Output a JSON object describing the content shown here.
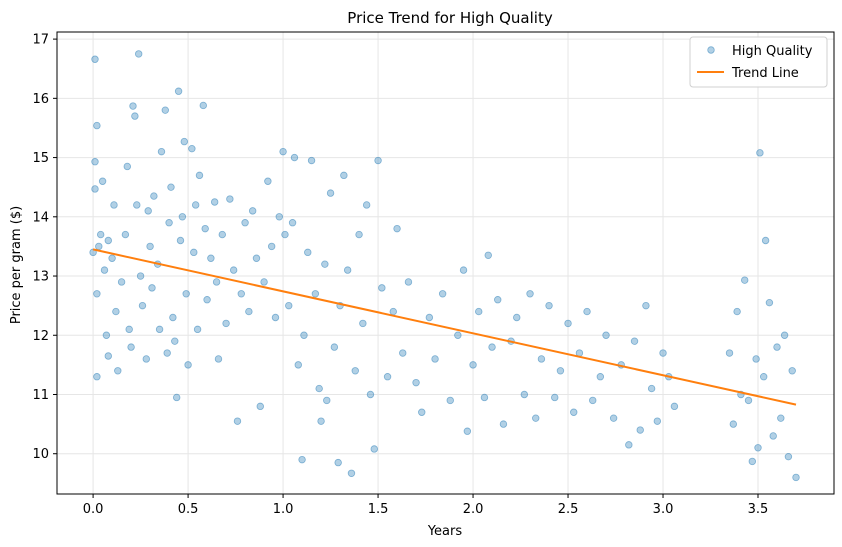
{
  "chart_data": {
    "type": "scatter",
    "title": "Price Trend for High Quality",
    "xlabel": "Years",
    "ylabel": "Price per gram ($)",
    "xlim": [
      -0.19,
      3.9
    ],
    "ylim": [
      9.32,
      17.12
    ],
    "xticks": [
      0.0,
      0.5,
      1.0,
      1.5,
      2.0,
      2.5,
      3.0,
      3.5
    ],
    "xtick_labels": [
      "0.0",
      "0.5",
      "1.0",
      "1.5",
      "2.0",
      "2.5",
      "3.0",
      "3.5"
    ],
    "yticks": [
      10,
      11,
      12,
      13,
      14,
      15,
      16,
      17
    ],
    "ytick_labels": [
      "10",
      "11",
      "12",
      "13",
      "14",
      "15",
      "16",
      "17"
    ],
    "grid": true,
    "legend_position": "top-right",
    "series": [
      {
        "name": "High Quality",
        "kind": "scatter",
        "color": "#1f77b4",
        "alpha": 0.35,
        "points": [
          [
            0.0,
            13.4
          ],
          [
            0.01,
            16.66
          ],
          [
            0.01,
            14.93
          ],
          [
            0.01,
            14.47
          ],
          [
            0.02,
            15.54
          ],
          [
            0.02,
            12.7
          ],
          [
            0.02,
            11.3
          ],
          [
            0.03,
            13.5
          ],
          [
            0.04,
            13.7
          ],
          [
            0.05,
            14.6
          ],
          [
            0.06,
            13.1
          ],
          [
            0.07,
            12.0
          ],
          [
            0.08,
            13.6
          ],
          [
            0.08,
            11.65
          ],
          [
            0.1,
            13.3
          ],
          [
            0.11,
            14.2
          ],
          [
            0.12,
            12.4
          ],
          [
            0.13,
            11.4
          ],
          [
            0.15,
            12.9
          ],
          [
            0.17,
            13.7
          ],
          [
            0.18,
            14.85
          ],
          [
            0.19,
            12.1
          ],
          [
            0.2,
            11.8
          ],
          [
            0.21,
            15.87
          ],
          [
            0.22,
            15.7
          ],
          [
            0.23,
            14.2
          ],
          [
            0.24,
            16.75
          ],
          [
            0.25,
            13.0
          ],
          [
            0.26,
            12.5
          ],
          [
            0.28,
            11.6
          ],
          [
            0.29,
            14.1
          ],
          [
            0.3,
            13.5
          ],
          [
            0.31,
            12.8
          ],
          [
            0.32,
            14.35
          ],
          [
            0.34,
            13.2
          ],
          [
            0.35,
            12.1
          ],
          [
            0.36,
            15.1
          ],
          [
            0.38,
            15.8
          ],
          [
            0.39,
            11.7
          ],
          [
            0.4,
            13.9
          ],
          [
            0.41,
            14.5
          ],
          [
            0.42,
            12.3
          ],
          [
            0.43,
            11.9
          ],
          [
            0.44,
            10.95
          ],
          [
            0.45,
            16.12
          ],
          [
            0.46,
            13.6
          ],
          [
            0.47,
            14.0
          ],
          [
            0.48,
            15.27
          ],
          [
            0.49,
            12.7
          ],
          [
            0.5,
            11.5
          ],
          [
            0.52,
            15.15
          ],
          [
            0.53,
            13.4
          ],
          [
            0.54,
            14.2
          ],
          [
            0.55,
            12.1
          ],
          [
            0.56,
            14.7
          ],
          [
            0.58,
            15.88
          ],
          [
            0.59,
            13.8
          ],
          [
            0.6,
            12.6
          ],
          [
            0.62,
            13.3
          ],
          [
            0.64,
            14.25
          ],
          [
            0.65,
            12.9
          ],
          [
            0.66,
            11.6
          ],
          [
            0.68,
            13.7
          ],
          [
            0.7,
            12.2
          ],
          [
            0.72,
            14.3
          ],
          [
            0.74,
            13.1
          ],
          [
            0.76,
            10.55
          ],
          [
            0.78,
            12.7
          ],
          [
            0.8,
            13.9
          ],
          [
            0.82,
            12.4
          ],
          [
            0.84,
            14.1
          ],
          [
            0.86,
            13.3
          ],
          [
            0.88,
            10.8
          ],
          [
            0.9,
            12.9
          ],
          [
            0.92,
            14.6
          ],
          [
            0.94,
            13.5
          ],
          [
            0.96,
            12.3
          ],
          [
            0.98,
            14.0
          ],
          [
            1.0,
            15.1
          ],
          [
            1.01,
            13.7
          ],
          [
            1.03,
            12.5
          ],
          [
            1.05,
            13.9
          ],
          [
            1.06,
            15.0
          ],
          [
            1.08,
            11.5
          ],
          [
            1.1,
            9.9
          ],
          [
            1.11,
            12.0
          ],
          [
            1.13,
            13.4
          ],
          [
            1.15,
            14.95
          ],
          [
            1.17,
            12.7
          ],
          [
            1.19,
            11.1
          ],
          [
            1.2,
            10.55
          ],
          [
            1.22,
            13.2
          ],
          [
            1.23,
            10.9
          ],
          [
            1.25,
            14.4
          ],
          [
            1.27,
            11.8
          ],
          [
            1.29,
            9.85
          ],
          [
            1.3,
            12.5
          ],
          [
            1.32,
            14.7
          ],
          [
            1.34,
            13.1
          ],
          [
            1.36,
            9.67
          ],
          [
            1.38,
            11.4
          ],
          [
            1.4,
            13.7
          ],
          [
            1.42,
            12.2
          ],
          [
            1.44,
            14.2
          ],
          [
            1.46,
            11.0
          ],
          [
            1.48,
            10.08
          ],
          [
            1.5,
            14.95
          ],
          [
            1.52,
            12.8
          ],
          [
            1.55,
            11.3
          ],
          [
            1.58,
            12.4
          ],
          [
            1.6,
            13.8
          ],
          [
            1.63,
            11.7
          ],
          [
            1.66,
            12.9
          ],
          [
            1.7,
            11.2
          ],
          [
            1.73,
            10.7
          ],
          [
            1.77,
            12.3
          ],
          [
            1.8,
            11.6
          ],
          [
            1.84,
            12.7
          ],
          [
            1.88,
            10.9
          ],
          [
            1.92,
            12.0
          ],
          [
            1.95,
            13.1
          ],
          [
            1.97,
            10.38
          ],
          [
            2.0,
            11.5
          ],
          [
            2.03,
            12.4
          ],
          [
            2.06,
            10.95
          ],
          [
            2.08,
            13.35
          ],
          [
            2.1,
            11.8
          ],
          [
            2.13,
            12.6
          ],
          [
            2.16,
            10.5
          ],
          [
            2.2,
            11.9
          ],
          [
            2.23,
            12.3
          ],
          [
            2.27,
            11.0
          ],
          [
            2.3,
            12.7
          ],
          [
            2.33,
            10.6
          ],
          [
            2.36,
            11.6
          ],
          [
            2.4,
            12.5
          ],
          [
            2.43,
            10.95
          ],
          [
            2.46,
            11.4
          ],
          [
            2.5,
            12.2
          ],
          [
            2.53,
            10.7
          ],
          [
            2.56,
            11.7
          ],
          [
            2.6,
            12.4
          ],
          [
            2.63,
            10.9
          ],
          [
            2.67,
            11.3
          ],
          [
            2.7,
            12.0
          ],
          [
            2.74,
            10.6
          ],
          [
            2.78,
            11.5
          ],
          [
            2.82,
            10.15
          ],
          [
            2.85,
            11.9
          ],
          [
            2.88,
            10.4
          ],
          [
            2.91,
            12.5
          ],
          [
            2.94,
            11.1
          ],
          [
            2.97,
            10.55
          ],
          [
            3.0,
            11.7
          ],
          [
            3.03,
            11.3
          ],
          [
            3.06,
            10.8
          ],
          [
            3.35,
            11.7
          ],
          [
            3.37,
            10.5
          ],
          [
            3.39,
            12.4
          ],
          [
            3.41,
            11.0
          ],
          [
            3.43,
            12.93
          ],
          [
            3.45,
            10.9
          ],
          [
            3.47,
            9.87
          ],
          [
            3.49,
            11.6
          ],
          [
            3.5,
            10.1
          ],
          [
            3.51,
            15.08
          ],
          [
            3.53,
            11.3
          ],
          [
            3.54,
            13.6
          ],
          [
            3.56,
            12.55
          ],
          [
            3.58,
            10.3
          ],
          [
            3.6,
            11.8
          ],
          [
            3.62,
            10.6
          ],
          [
            3.64,
            12.0
          ],
          [
            3.66,
            9.95
          ],
          [
            3.68,
            11.4
          ],
          [
            3.7,
            9.6
          ]
        ]
      },
      {
        "name": "Trend Line",
        "kind": "line",
        "color": "#ff7f0e",
        "points": [
          [
            0.0,
            13.45
          ],
          [
            3.7,
            10.83
          ]
        ]
      }
    ]
  }
}
